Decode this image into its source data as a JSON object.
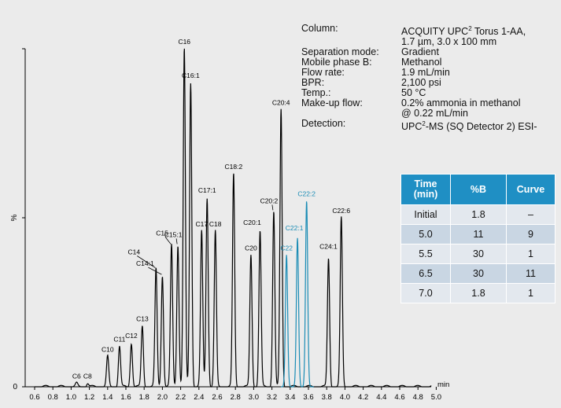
{
  "parameters": [
    {
      "label": "Column:",
      "value": "ACQUITY UPC",
      "sup": "2",
      "value_after": " Torus 1-AA,\n1.7 µm, 3.0 x 100 mm"
    },
    {
      "label": "Separation mode:",
      "value": "Gradient"
    },
    {
      "label": "Mobile phase B:",
      "value": "Methanol"
    },
    {
      "label": "Flow rate:",
      "value": "1.9 mL/min"
    },
    {
      "label": "BPR:",
      "value": "2,100 psi"
    },
    {
      "label": "Temp.:",
      "value": "50 °C"
    },
    {
      "label": "Make-up flow:",
      "value": "0.2% ammonia in methanol\n@ 0.22 mL/min"
    },
    {
      "label": "Detection:",
      "value": "UPC",
      "sup": "2",
      "value_after": "-MS (SQ Detector 2) ESI-"
    }
  ],
  "gradient_table": {
    "headers": [
      "Time\n(min)",
      "%B",
      "Curve"
    ],
    "rows": [
      [
        "Initial",
        "1.8",
        "–"
      ],
      [
        "5.0",
        "11",
        "9"
      ],
      [
        "5.5",
        "30",
        "1"
      ],
      [
        "6.5",
        "30",
        "11"
      ],
      [
        "7.0",
        "1.8",
        "1"
      ]
    ],
    "header_color": "#1f8fc4",
    "row_colors": [
      "#e3e8ee",
      "#c9d6e3"
    ]
  },
  "chart_data": {
    "type": "line",
    "title": "",
    "xlabel": "min",
    "ylabel": "%",
    "xlim": [
      0.55,
      5.05
    ],
    "ylim": [
      0,
      100
    ],
    "x_ticks": [
      "0.6",
      "0.8",
      "1.0",
      "1.2",
      "1.4",
      "1.6",
      "1.8",
      "2.0",
      "2.2",
      "2.4",
      "2.6",
      "2.8",
      "3.0",
      "3.2",
      "3.4",
      "3.6",
      "3.8",
      "4.0",
      "4.2",
      "4.4",
      "4.6",
      "4.8",
      "5.0"
    ],
    "y_ticks": [
      "0",
      "%"
    ],
    "colors": {
      "default": "#000000",
      "highlight": "#1a8cb5"
    },
    "peaks": [
      {
        "label": "C6",
        "x": 1.06,
        "y": 1
      },
      {
        "label": "C8",
        "x": 1.18,
        "y": 1
      },
      {
        "label": "C10",
        "x": 1.4,
        "y": 9
      },
      {
        "label": "C11",
        "x": 1.53,
        "y": 12
      },
      {
        "label": "C12",
        "x": 1.66,
        "y": 13
      },
      {
        "label": "C13",
        "x": 1.78,
        "y": 18
      },
      {
        "label": "C14",
        "x": 1.93,
        "y": 35
      },
      {
        "label": "C14:1",
        "x": 2.0,
        "y": 33
      },
      {
        "label": "C15",
        "x": 2.1,
        "y": 42
      },
      {
        "label": "C15:1",
        "x": 2.17,
        "y": 42
      },
      {
        "label": "C16",
        "x": 2.24,
        "y": 100
      },
      {
        "label": "C16:1",
        "x": 2.31,
        "y": 90
      },
      {
        "label": "C17",
        "x": 2.43,
        "y": 46
      },
      {
        "label": "C17:1",
        "x": 2.49,
        "y": 56
      },
      {
        "label": "C18",
        "x": 2.58,
        "y": 46
      },
      {
        "label": "C18:2",
        "x": 2.78,
        "y": 63
      },
      {
        "label": "C20",
        "x": 2.97,
        "y": 39
      },
      {
        "label": "C20:1",
        "x": 3.07,
        "y": 46
      },
      {
        "label": "C20:2",
        "x": 3.22,
        "y": 52
      },
      {
        "label": "C20:4",
        "x": 3.3,
        "y": 82
      },
      {
        "label": "C22",
        "x": 3.36,
        "y": 39,
        "highlight": true
      },
      {
        "label": "C22:1",
        "x": 3.48,
        "y": 44,
        "highlight": true
      },
      {
        "label": "C22:2",
        "x": 3.58,
        "y": 55,
        "highlight": true
      },
      {
        "label": "C24:1",
        "x": 3.82,
        "y": 38
      },
      {
        "label": "C22:6",
        "x": 3.96,
        "y": 50
      }
    ]
  }
}
